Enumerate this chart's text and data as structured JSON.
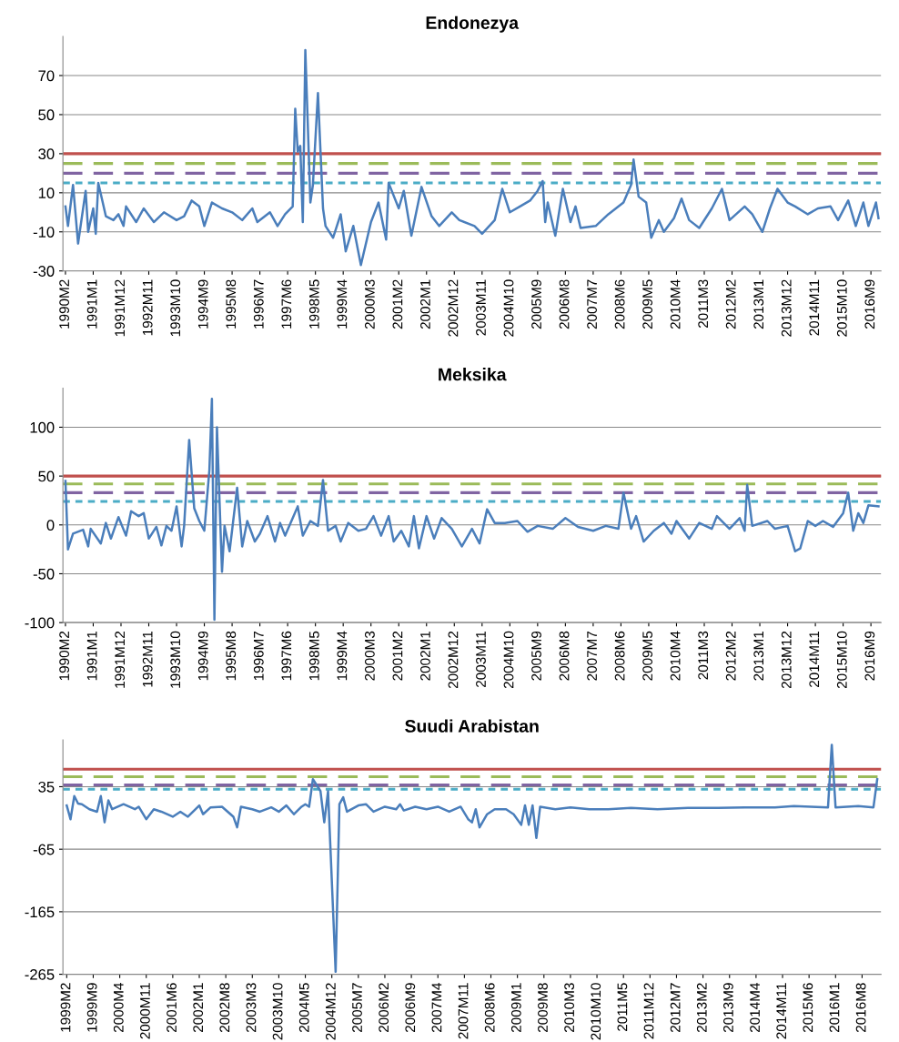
{
  "chart_data": [
    {
      "type": "line",
      "title": "Endonezya",
      "grid": "y",
      "marker": "none",
      "line_style": "solid",
      "xlim": [
        "1990-01",
        "2017-01"
      ],
      "ylim": [
        -30,
        90
      ],
      "yticks": [
        -30,
        -10,
        10,
        30,
        50,
        70
      ],
      "xticks": [
        {
          "value": "1990-02",
          "label": "1990M2"
        },
        {
          "value": "1991-01",
          "label": "1991M1"
        },
        {
          "value": "1991-12",
          "label": "1991M12"
        },
        {
          "value": "1992-11",
          "label": "1992M11"
        },
        {
          "value": "1993-10",
          "label": "1993M10"
        },
        {
          "value": "1994-09",
          "label": "1994M9"
        },
        {
          "value": "1995-08",
          "label": "1995M8"
        },
        {
          "value": "1996-07",
          "label": "1996M7"
        },
        {
          "value": "1997-06",
          "label": "1997M6"
        },
        {
          "value": "1998-05",
          "label": "1998M5"
        },
        {
          "value": "1999-04",
          "label": "1999M4"
        },
        {
          "value": "2000-03",
          "label": "2000M3"
        },
        {
          "value": "2001-02",
          "label": "2001M2"
        },
        {
          "value": "2002-01",
          "label": "2002M1"
        },
        {
          "value": "2002-12",
          "label": "2002M12"
        },
        {
          "value": "2003-11",
          "label": "2003M11"
        },
        {
          "value": "2004-10",
          "label": "2004M10"
        },
        {
          "value": "2005-09",
          "label": "2005M9"
        },
        {
          "value": "2006-08",
          "label": "2006M8"
        },
        {
          "value": "2007-07",
          "label": "2007M7"
        },
        {
          "value": "2008-06",
          "label": "2008M6"
        },
        {
          "value": "2009-05",
          "label": "2009M5"
        },
        {
          "value": "2010-04",
          "label": "2010M4"
        },
        {
          "value": "2011-03",
          "label": "2011M3"
        },
        {
          "value": "2012-02",
          "label": "2012M2"
        },
        {
          "value": "2013-01",
          "label": "2013M1"
        },
        {
          "value": "2013-12",
          "label": "2013M12"
        },
        {
          "value": "2014-11",
          "label": "2014M11"
        },
        {
          "value": "2015-10",
          "label": "2015M10"
        },
        {
          "value": "2016-09",
          "label": "2016M9"
        }
      ],
      "ref_lines": [
        {
          "axis": "y",
          "value": 30,
          "color": "#c0504d",
          "line_style": "solid"
        },
        {
          "axis": "y",
          "value": 25,
          "color": "#9bbb59",
          "line_style": "dashed"
        },
        {
          "axis": "y",
          "value": 20,
          "color": "#8064a2",
          "line_style": "dashed"
        },
        {
          "axis": "y",
          "value": 15,
          "color": "#4bacc6",
          "line_style": "dotted"
        }
      ],
      "series": [
        {
          "color": "#4a7ebb",
          "x": [
            "1990-02",
            "1990-03",
            "1990-05",
            "1990-07",
            "1990-10",
            "1990-11",
            "1991-01",
            "1991-02",
            "1991-03",
            "1991-06",
            "1991-09",
            "1991-11",
            "1992-01",
            "1992-02",
            "1992-06",
            "1992-09",
            "1993-01",
            "1993-05",
            "1993-10",
            "1994-01",
            "1994-04",
            "1994-07",
            "1994-09",
            "1994-12",
            "1995-04",
            "1995-08",
            "1995-12",
            "1996-04",
            "1996-06",
            "1996-11",
            "1997-02",
            "1997-05",
            "1997-08",
            "1997-09",
            "1997-10",
            "1997-11",
            "1997-12",
            "1998-01",
            "1998-03",
            "1998-04",
            "1998-06",
            "1998-08",
            "1998-09",
            "1998-12",
            "1999-03",
            "1999-05",
            "1999-08",
            "1999-11",
            "2000-03",
            "2000-06",
            "2000-09",
            "2000-10",
            "2001-02",
            "2001-04",
            "2001-07",
            "2001-11",
            "2002-03",
            "2002-06",
            "2002-11",
            "2003-02",
            "2003-08",
            "2003-11",
            "2004-04",
            "2004-07",
            "2004-10",
            "2005-02",
            "2005-06",
            "2005-09",
            "2005-11",
            "2005-12",
            "2006-01",
            "2006-04",
            "2006-07",
            "2006-10",
            "2006-12",
            "2007-02",
            "2007-08",
            "2008-01",
            "2008-04",
            "2008-07",
            "2008-10",
            "2008-11",
            "2009-01",
            "2009-04",
            "2009-06",
            "2009-09",
            "2009-11",
            "2010-03",
            "2010-06",
            "2010-09",
            "2011-01",
            "2011-06",
            "2011-10",
            "2012-01",
            "2012-07",
            "2012-10",
            "2013-02",
            "2013-05",
            "2013-08",
            "2013-12",
            "2014-03",
            "2014-08",
            "2014-12",
            "2015-05",
            "2015-08",
            "2015-12",
            "2016-03",
            "2016-06",
            "2016-08",
            "2016-11",
            "2016-12"
          ],
          "values": [
            3,
            -7,
            14,
            -16,
            11,
            -10,
            2,
            -11,
            15,
            -2,
            -4,
            -1,
            -7,
            3,
            -5,
            2,
            -5,
            0,
            -4,
            -2,
            6,
            3,
            -7,
            5,
            2,
            0,
            -4,
            2,
            -5,
            0,
            -7,
            -1,
            3,
            53,
            31,
            34,
            -5,
            83,
            5,
            14,
            61,
            2,
            -7,
            -13,
            -1,
            -20,
            -7,
            -27,
            -5,
            5,
            -14,
            15,
            2,
            11,
            -12,
            13,
            -2,
            -7,
            0,
            -4,
            -7,
            -11,
            -4,
            12,
            0,
            3,
            6,
            11,
            16,
            -5,
            5,
            -12,
            12,
            -5,
            3,
            -8,
            -7,
            -1,
            2,
            5,
            14,
            27,
            8,
            5,
            -13,
            -4,
            -10,
            -3,
            7,
            -4,
            -8,
            2,
            12,
            -4,
            3,
            -1,
            -10,
            2,
            12,
            5,
            3,
            -1,
            2,
            3,
            -4,
            6,
            -7,
            5,
            -7,
            5,
            -3
          ]
        }
      ]
    },
    {
      "type": "line",
      "title": "Meksika",
      "grid": "y",
      "marker": "none",
      "line_style": "solid",
      "xlim": [
        "1990-01",
        "2017-01"
      ],
      "ylim": [
        -100,
        140
      ],
      "yticks": [
        -100,
        -50,
        0,
        50,
        100
      ],
      "xticks": [
        {
          "value": "1990-02",
          "label": "1990M2"
        },
        {
          "value": "1991-01",
          "label": "1991M1"
        },
        {
          "value": "1991-12",
          "label": "1991M12"
        },
        {
          "value": "1992-11",
          "label": "1992M11"
        },
        {
          "value": "1993-10",
          "label": "1993M10"
        },
        {
          "value": "1994-09",
          "label": "1994M9"
        },
        {
          "value": "1995-08",
          "label": "1995M8"
        },
        {
          "value": "1996-07",
          "label": "1996M7"
        },
        {
          "value": "1997-06",
          "label": "1997M6"
        },
        {
          "value": "1998-05",
          "label": "1998M5"
        },
        {
          "value": "1999-04",
          "label": "1999M4"
        },
        {
          "value": "2000-03",
          "label": "2000M3"
        },
        {
          "value": "2001-02",
          "label": "2001M2"
        },
        {
          "value": "2002-01",
          "label": "2002M1"
        },
        {
          "value": "2002-12",
          "label": "2002M12"
        },
        {
          "value": "2003-11",
          "label": "2003M11"
        },
        {
          "value": "2004-10",
          "label": "2004M10"
        },
        {
          "value": "2005-09",
          "label": "2005M9"
        },
        {
          "value": "2006-08",
          "label": "2006M8"
        },
        {
          "value": "2007-07",
          "label": "2007M7"
        },
        {
          "value": "2008-06",
          "label": "2008M6"
        },
        {
          "value": "2009-05",
          "label": "2009M5"
        },
        {
          "value": "2010-04",
          "label": "2010M4"
        },
        {
          "value": "2011-03",
          "label": "2011M3"
        },
        {
          "value": "2012-02",
          "label": "2012M2"
        },
        {
          "value": "2013-01",
          "label": "2013M1"
        },
        {
          "value": "2013-12",
          "label": "2013M12"
        },
        {
          "value": "2014-11",
          "label": "2014M11"
        },
        {
          "value": "2015-10",
          "label": "2015M10"
        },
        {
          "value": "2016-09",
          "label": "2016M9"
        }
      ],
      "ref_lines": [
        {
          "axis": "y",
          "value": 50,
          "color": "#c0504d",
          "line_style": "solid"
        },
        {
          "axis": "y",
          "value": 42,
          "color": "#9bbb59",
          "line_style": "dashed"
        },
        {
          "axis": "y",
          "value": 33,
          "color": "#8064a2",
          "line_style": "dashed"
        },
        {
          "axis": "y",
          "value": 24,
          "color": "#4bacc6",
          "line_style": "dotted"
        }
      ],
      "series": [
        {
          "color": "#4a7ebb",
          "x": [
            "1990-02",
            "1990-03",
            "1990-05",
            "1990-09",
            "1990-11",
            "1990-12",
            "1991-04",
            "1991-06",
            "1991-08",
            "1991-11",
            "1992-02",
            "1992-04",
            "1992-07",
            "1992-09",
            "1992-11",
            "1993-02",
            "1993-04",
            "1993-06",
            "1993-08",
            "1993-10",
            "1993-12",
            "1994-01",
            "1994-03",
            "1994-05",
            "1994-07",
            "1994-09",
            "1994-11",
            "1994-12",
            "1995-01",
            "1995-02",
            "1995-04",
            "1995-05",
            "1995-07",
            "1995-10",
            "1995-12",
            "1996-02",
            "1996-05",
            "1996-07",
            "1996-10",
            "1997-01",
            "1997-03",
            "1997-05",
            "1997-10",
            "1997-12",
            "1998-03",
            "1998-06",
            "1998-08",
            "1998-10",
            "1999-01",
            "1999-03",
            "1999-06",
            "1999-10",
            "2000-01",
            "2000-04",
            "2000-07",
            "2000-10",
            "2000-12",
            "2001-03",
            "2001-06",
            "2001-08",
            "2001-10",
            "2002-01",
            "2002-04",
            "2002-07",
            "2002-11",
            "2003-03",
            "2003-07",
            "2003-10",
            "2004-01",
            "2004-04",
            "2004-08",
            "2005-01",
            "2005-05",
            "2005-09",
            "2006-03",
            "2006-08",
            "2007-01",
            "2007-07",
            "2007-12",
            "2008-05",
            "2008-07",
            "2008-10",
            "2008-12",
            "2009-03",
            "2009-07",
            "2009-11",
            "2010-02",
            "2010-04",
            "2010-09",
            "2011-01",
            "2011-06",
            "2011-08",
            "2012-01",
            "2012-05",
            "2012-07",
            "2012-08",
            "2012-10",
            "2013-04",
            "2013-07",
            "2013-12",
            "2014-03",
            "2014-05",
            "2014-08",
            "2014-11",
            "2015-02",
            "2015-06",
            "2015-10",
            "2015-12",
            "2016-02",
            "2016-04",
            "2016-06",
            "2016-08",
            "2016-12"
          ],
          "values": [
            45,
            -25,
            -9,
            -5,
            -22,
            -4,
            -19,
            2,
            -14,
            8,
            -11,
            14,
            9,
            12,
            -14,
            -2,
            -21,
            -1,
            -6,
            19,
            -22,
            -1,
            87,
            17,
            4,
            -6,
            56,
            129,
            -97,
            100,
            -48,
            -1,
            -27,
            38,
            -22,
            4,
            -17,
            -9,
            9,
            -17,
            2,
            -11,
            19,
            -11,
            4,
            -1,
            46,
            -6,
            -1,
            -17,
            2,
            -6,
            -4,
            9,
            -11,
            9,
            -17,
            -6,
            -22,
            9,
            -24,
            9,
            -14,
            7,
            -4,
            -22,
            -4,
            -19,
            16,
            2,
            2,
            4,
            -7,
            -1,
            -4,
            7,
            -2,
            -6,
            -1,
            -4,
            33,
            -4,
            9,
            -17,
            -6,
            2,
            -9,
            4,
            -14,
            2,
            -4,
            9,
            -4,
            7,
            -6,
            41,
            -1,
            4,
            -4,
            -1,
            -27,
            -24,
            4,
            -1,
            4,
            -2,
            12,
            33,
            -6,
            12,
            2,
            20,
            19
          ]
        }
      ]
    },
    {
      "type": "line",
      "title": "Suudi Arabistan",
      "grid": "y",
      "marker": "none",
      "line_style": "solid",
      "xlim": [
        "1999-01",
        "2017-01"
      ],
      "ylim": [
        -265,
        110
      ],
      "yticks": [
        -265,
        -165,
        -65,
        35
      ],
      "xticks": [
        {
          "value": "1999-02",
          "label": "1999M2"
        },
        {
          "value": "1999-09",
          "label": "1999M9"
        },
        {
          "value": "2000-04",
          "label": "2000M4"
        },
        {
          "value": "2000-11",
          "label": "2000M11"
        },
        {
          "value": "2001-06",
          "label": "2001M6"
        },
        {
          "value": "2002-01",
          "label": "2002M1"
        },
        {
          "value": "2002-08",
          "label": "2002M8"
        },
        {
          "value": "2003-03",
          "label": "2003M3"
        },
        {
          "value": "2003-10",
          "label": "2003M10"
        },
        {
          "value": "2004-05",
          "label": "2004M5"
        },
        {
          "value": "2004-12",
          "label": "2004M12"
        },
        {
          "value": "2005-07",
          "label": "2005M7"
        },
        {
          "value": "2006-02",
          "label": "2006M2"
        },
        {
          "value": "2006-09",
          "label": "2006M9"
        },
        {
          "value": "2007-04",
          "label": "2007M4"
        },
        {
          "value": "2007-11",
          "label": "2007M11"
        },
        {
          "value": "2008-06",
          "label": "2008M6"
        },
        {
          "value": "2009-01",
          "label": "2009M1"
        },
        {
          "value": "2009-08",
          "label": "2009M8"
        },
        {
          "value": "2010-03",
          "label": "2010M3"
        },
        {
          "value": "2010-10",
          "label": "2010M10"
        },
        {
          "value": "2011-05",
          "label": "2011M5"
        },
        {
          "value": "2011-12",
          "label": "2011M12"
        },
        {
          "value": "2012-07",
          "label": "2012M7"
        },
        {
          "value": "2013-02",
          "label": "2013M2"
        },
        {
          "value": "2013-09",
          "label": "2013M9"
        },
        {
          "value": "2014-04",
          "label": "2014M4"
        },
        {
          "value": "2014-11",
          "label": "2014M11"
        },
        {
          "value": "2015-06",
          "label": "2015M6"
        },
        {
          "value": "2016-01",
          "label": "2016M1"
        },
        {
          "value": "2016-08",
          "label": "2016M8"
        }
      ],
      "ref_lines": [
        {
          "axis": "y",
          "value": 63,
          "color": "#c0504d",
          "line_style": "solid"
        },
        {
          "axis": "y",
          "value": 51,
          "color": "#9bbb59",
          "line_style": "dashed"
        },
        {
          "axis": "y",
          "value": 38,
          "color": "#8064a2",
          "line_style": "dashed"
        },
        {
          "axis": "y",
          "value": 31,
          "color": "#4bacc6",
          "line_style": "dotted"
        }
      ],
      "series": [
        {
          "color": "#4a7ebb",
          "x": [
            "1999-02",
            "1999-03",
            "1999-04",
            "1999-05",
            "1999-06",
            "1999-08",
            "1999-10",
            "1999-11",
            "1999-12",
            "2000-01",
            "2000-02",
            "2000-05",
            "2000-08",
            "2000-09",
            "2000-11",
            "2001-01",
            "2001-03",
            "2001-06",
            "2001-08",
            "2001-10",
            "2002-01",
            "2002-02",
            "2002-04",
            "2002-07",
            "2002-10",
            "2002-11",
            "2002-12",
            "2003-03",
            "2003-05",
            "2003-08",
            "2003-10",
            "2003-12",
            "2004-02",
            "2004-04",
            "2004-05",
            "2004-06",
            "2004-07",
            "2004-09",
            "2004-10",
            "2004-11",
            "2005-01",
            "2005-02",
            "2005-03",
            "2005-04",
            "2005-07",
            "2005-09",
            "2005-11",
            "2006-02",
            "2006-05",
            "2006-06",
            "2006-07",
            "2006-10",
            "2007-01",
            "2007-04",
            "2007-07",
            "2007-10",
            "2007-12",
            "2008-01",
            "2008-02",
            "2008-03",
            "2008-05",
            "2008-07",
            "2008-10",
            "2008-12",
            "2009-02",
            "2009-03",
            "2009-04",
            "2009-05",
            "2009-06",
            "2009-07",
            "2009-11",
            "2010-03",
            "2010-08",
            "2011-01",
            "2011-07",
            "2012-02",
            "2012-10",
            "2013-06",
            "2014-01",
            "2014-09",
            "2015-02",
            "2015-11",
            "2015-12",
            "2016-01",
            "2016-07",
            "2016-11",
            "2016-12"
          ],
          "values": [
            5,
            -17,
            20,
            8,
            7,
            -1,
            -5,
            20,
            -22,
            13,
            -1,
            7,
            -1,
            3,
            -17,
            -1,
            -5,
            -13,
            -5,
            -13,
            5,
            -9,
            2,
            3,
            -13,
            -30,
            3,
            -1,
            -5,
            2,
            -5,
            5,
            -9,
            3,
            7,
            3,
            47,
            28,
            -22,
            28,
            -261,
            7,
            18,
            -5,
            5,
            7,
            -5,
            3,
            -1,
            7,
            -3,
            3,
            -1,
            3,
            -5,
            3,
            -17,
            -22,
            -1,
            -30,
            -9,
            -1,
            -1,
            -9,
            -26,
            5,
            -26,
            5,
            -47,
            3,
            -1,
            2,
            -1,
            -1,
            1,
            -1,
            1,
            1,
            2,
            2,
            4,
            2,
            102,
            2,
            4,
            2,
            47
          ]
        }
      ]
    }
  ]
}
